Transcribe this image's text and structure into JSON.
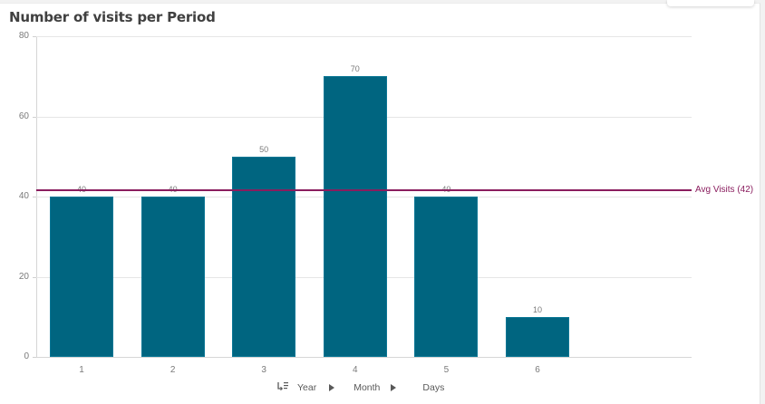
{
  "title": "Number of visits per Period",
  "chart_data": {
    "type": "bar",
    "title": "Number of visits per Period",
    "categories": [
      "1",
      "2",
      "3",
      "4",
      "5",
      "6"
    ],
    "values": [
      40,
      40,
      50,
      70,
      40,
      10
    ],
    "data_labels": [
      "40",
      "40",
      "50",
      "70",
      "40",
      "10"
    ],
    "xlabel": "",
    "ylabel": "",
    "ylim": [
      0,
      80
    ],
    "yticks": [
      "0",
      "20",
      "40",
      "60",
      "80"
    ],
    "grid": true,
    "reference_lines": [
      {
        "label": "Avg Visits (42)",
        "value": 42,
        "color": "#8a1d5e"
      }
    ],
    "bar_color": "#006580"
  },
  "drilldown": {
    "icon": "drill-down-icon",
    "levels": [
      "Year",
      "Month",
      "Days"
    ]
  }
}
